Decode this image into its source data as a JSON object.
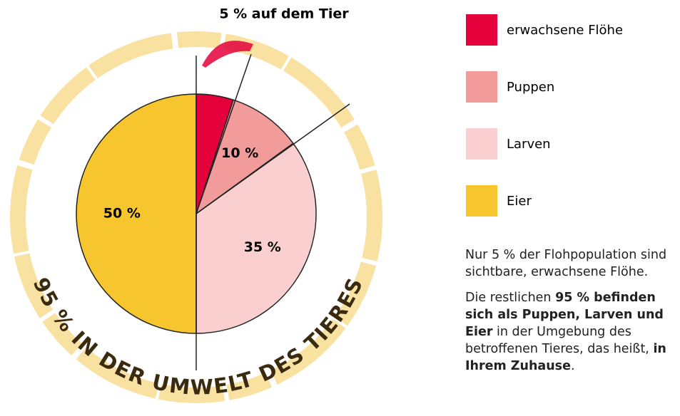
{
  "chart_data": {
    "type": "pie",
    "annotation": "5 % auf dem Tier",
    "ring_label": "95 % IN DER UMWELT DES TIERES",
    "categories": [
      "erwachsene Flöhe",
      "Puppen",
      "Larven",
      "Eier"
    ],
    "values": [
      5,
      10,
      35,
      50
    ],
    "value_labels": [
      null,
      "10 %",
      "35 %",
      "50 %"
    ],
    "colors": [
      "#e4003b",
      "#f29b9b",
      "#f9d0cf",
      "#f7c62f"
    ]
  },
  "notes": [
    {
      "segments": [
        {
          "text": "Nur 5 % der Flohpopulation sind sichtbare, erwachsene Flöhe.",
          "bold": false
        }
      ]
    },
    {
      "segments": [
        {
          "text": "Die restlichen ",
          "bold": false
        },
        {
          "text": "95 % befinden sich als Puppen, Larven und Eier",
          "bold": true
        },
        {
          "text": " in der Umgebung des betroffenen Tieres, das heißt, ",
          "bold": false
        },
        {
          "text": "in Ihrem Zuhause",
          "bold": true
        },
        {
          "text": ".",
          "bold": false
        }
      ]
    }
  ]
}
